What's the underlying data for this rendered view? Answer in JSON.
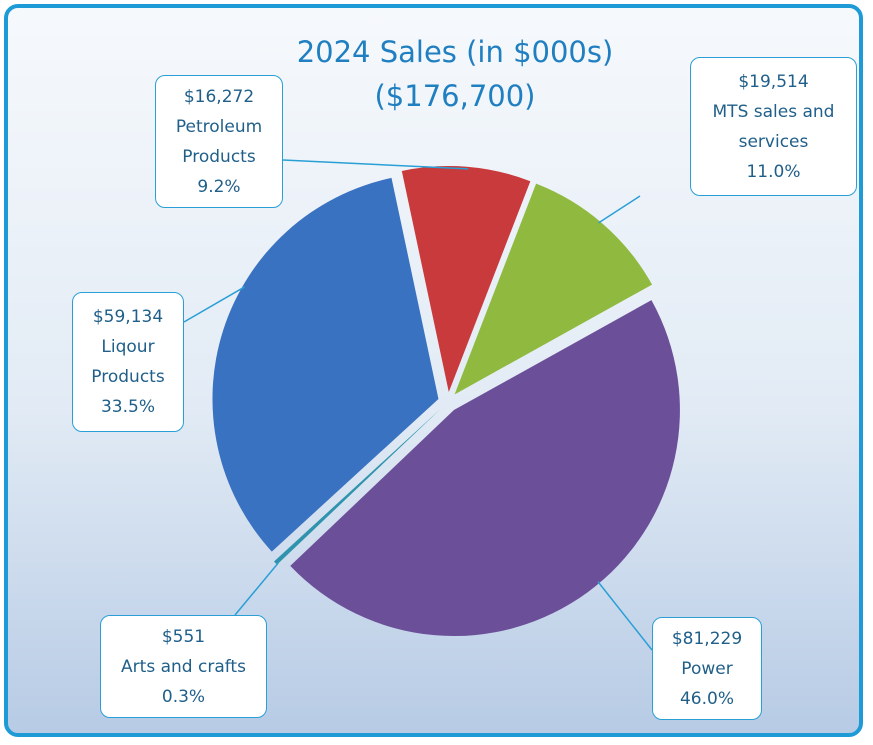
{
  "chart_data": {
    "type": "pie",
    "title": "2024 Sales (in $000s)",
    "subtitle": "($176,700)",
    "categories": [
      "Petroleum Products",
      "MTS sales and services",
      "Power",
      "Arts and crafts",
      "Liqour Products"
    ],
    "values": [
      16272,
      19514,
      81229,
      551,
      59134
    ],
    "value_labels": [
      "$16,272",
      "$19,514",
      "$81,229",
      "$551",
      "$59,134"
    ],
    "percents": [
      9.2,
      11.0,
      46.0,
      0.3,
      33.5
    ],
    "percent_labels": [
      "9.2%",
      "11.0%",
      "46.0%",
      "0.3%",
      "33.5%"
    ],
    "colors": [
      "#c83a3c",
      "#8fba3f",
      "#6c4f99",
      "#2f93ad",
      "#3a72c2"
    ]
  }
}
